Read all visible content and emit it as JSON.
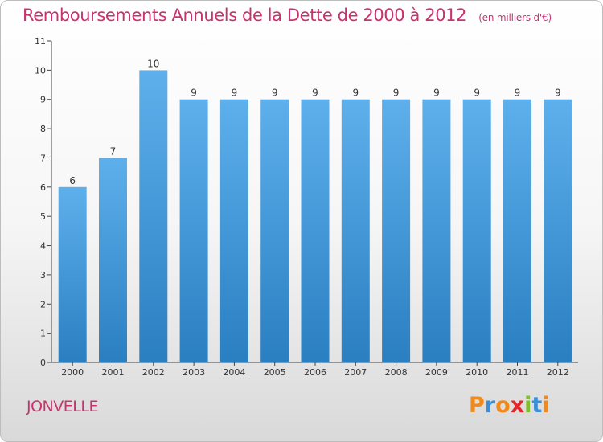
{
  "page": {
    "town_name": "JONVELLE",
    "logo": {
      "text": "Proxiti",
      "letter_colors": [
        "#f08a1c",
        "#3a8fd8",
        "#f08a1c",
        "#e3262e",
        "#7fbf2b",
        "#3a8fd8",
        "#f08a1c"
      ]
    }
  },
  "colors": {
    "title": "#c8326e",
    "bar_top": "#5eb0ec",
    "bar_bottom": "#2a7fc1",
    "axis": "#444444"
  },
  "chart_data": {
    "type": "bar",
    "title": "Remboursements Annuels de la Dette de 2000 à 2012",
    "unit_note": "(en milliers d'€)",
    "xlabel": "",
    "ylabel": "",
    "categories": [
      "2000",
      "2001",
      "2002",
      "2003",
      "2004",
      "2005",
      "2006",
      "2007",
      "2008",
      "2009",
      "2010",
      "2011",
      "2012"
    ],
    "values": [
      6,
      7,
      10,
      9,
      9,
      9,
      9,
      9,
      9,
      9,
      9,
      9,
      9
    ],
    "data_labels": [
      "6",
      "7",
      "10",
      "9",
      "9",
      "9",
      "9",
      "9",
      "9",
      "9",
      "9",
      "9",
      "9"
    ],
    "ylim": [
      0,
      11
    ],
    "yticks": [
      "0",
      "1",
      "2",
      "3",
      "4",
      "5",
      "6",
      "7",
      "8",
      "9",
      "10",
      "11"
    ],
    "grid": false,
    "legend": "none"
  }
}
